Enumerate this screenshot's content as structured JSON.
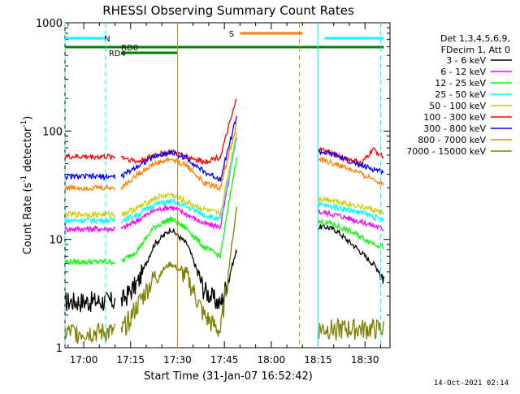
{
  "chart_data": {
    "type": "line",
    "title": "RHESSI Observing Summary Count Rates",
    "xlabel": "Start Time (31-Jan-07 16:52:42)",
    "ylabel_parts": [
      "Count Rate (s",
      "-1",
      " detector",
      "-1",
      ")"
    ],
    "yscale": "log",
    "ylim": [
      1,
      1000
    ],
    "xlim_min": [
      -6,
      98
    ],
    "x_ticks": [
      {
        "m": 0,
        "label": "17:00"
      },
      {
        "m": 15,
        "label": "17:15"
      },
      {
        "m": 30,
        "label": "17:30"
      },
      {
        "m": 45,
        "label": "17:45"
      },
      {
        "m": 60,
        "label": "18:00"
      },
      {
        "m": 75,
        "label": "18:15"
      },
      {
        "m": 90,
        "label": "18:30"
      }
    ],
    "y_ticks": [
      {
        "v": 1,
        "label": "1"
      },
      {
        "v": 10,
        "label": "10"
      },
      {
        "v": 100,
        "label": "100"
      },
      {
        "v": 1000,
        "label": "1000"
      }
    ],
    "legend_header": [
      "Det 1,3,4,5,6,9,",
      "FDecim 1, Att 0"
    ],
    "legend_position": "right",
    "segments": [
      [
        -6,
        10
      ],
      [
        12,
        49
      ],
      [
        75,
        96
      ]
    ],
    "series": [
      {
        "name": "3 - 6 keV",
        "color": "#000000",
        "values": [
          2.7,
          2.7,
          2.7,
          4,
          9,
          12.5,
          9,
          3.5,
          2.5,
          8,
          13,
          13,
          12,
          10,
          8.5,
          7,
          5.8,
          4.5
        ]
      },
      {
        "name": "6 - 12 keV",
        "color": "#ff00ff",
        "values": [
          12.5,
          12.5,
          12.5,
          15,
          18.5,
          20,
          17,
          14,
          13,
          90,
          18,
          17,
          15.5,
          14,
          12.5
        ]
      },
      {
        "name": "12 - 25 keV",
        "color": "#00ff00",
        "values": [
          6.2,
          6.2,
          6.2,
          8,
          13,
          15.5,
          12.5,
          8.5,
          7,
          60,
          14.5,
          14,
          12.5,
          11,
          9.5,
          8.5
        ]
      },
      {
        "name": "25 - 50 keV",
        "color": "#00ffff",
        "values": [
          15,
          15,
          15,
          17,
          21,
          22.5,
          20,
          17,
          15,
          90,
          21,
          20,
          18.5,
          17,
          15
        ]
      },
      {
        "name": "50 - 100 keV",
        "color": "#cccc00",
        "values": [
          17,
          17,
          17,
          19.5,
          24,
          26,
          22,
          19,
          17,
          100,
          24,
          23,
          21,
          19.5,
          17.5
        ]
      },
      {
        "name": "100 - 300 keV",
        "color": "#ff0000",
        "values": [
          58,
          58,
          58,
          52,
          60,
          64,
          58,
          52,
          58,
          200,
          68,
          64,
          58,
          54,
          50,
          68,
          58
        ]
      },
      {
        "name": "300 - 800 keV",
        "color": "#0000ff",
        "values": [
          38,
          38,
          38,
          48,
          58,
          64,
          56,
          42,
          36,
          140,
          65,
          60,
          52,
          46,
          42
        ]
      },
      {
        "name": "800 - 7000 keV",
        "color": "#ff8000",
        "values": [
          30,
          30,
          30,
          40,
          50,
          55,
          48,
          33,
          30,
          120,
          55,
          50,
          44,
          38,
          33
        ]
      },
      {
        "name": "7000 - 15000 keV",
        "color": "#808000",
        "values": [
          1.4,
          1.4,
          1.4,
          2.5,
          4.5,
          6,
          4.5,
          2,
          1.4,
          20,
          1.5,
          1.5,
          1.5,
          1.5,
          1.5
        ]
      }
    ],
    "annotations": [
      {
        "label": "N",
        "color": "#00ffff"
      },
      {
        "label": "S",
        "color": "#ff8000"
      },
      {
        "label": "RD0",
        "color": "#008000"
      },
      {
        "label": "RD4",
        "color": "#008000"
      }
    ]
  },
  "footer": {
    "timestamp": "14-Oct-2021 02:14"
  }
}
